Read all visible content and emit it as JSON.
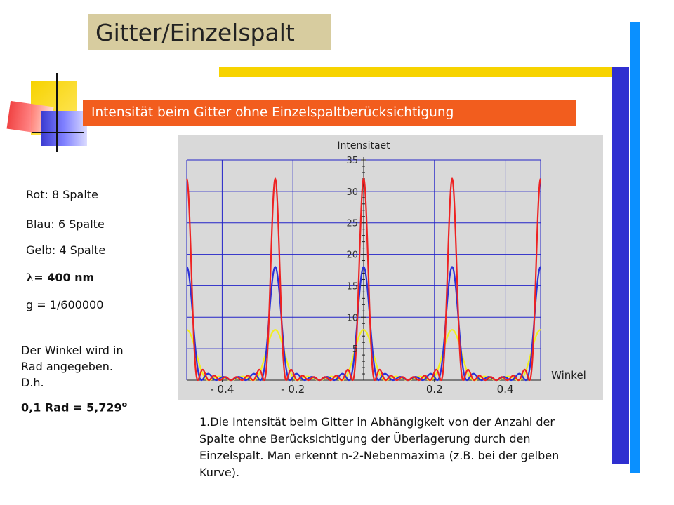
{
  "header": {
    "title": "Gitter/Einzelspalt",
    "subtitle": "Intensität beim Gitter ohne Einzelspaltberücksichtigung"
  },
  "legend": {
    "red": "Rot: 8 Spalte",
    "blue": "Blau: 6 Spalte",
    "yellow": "Gelb: 4 Spalte",
    "lambda_symbol": "λ",
    "lambda_value": "= 400 nm",
    "g": "g = 1/600000"
  },
  "note": {
    "line1": "Der Winkel wird in",
    "line2": "Rad angegeben.",
    "line3": "D.h.",
    "conversion": "0,1 Rad = 5,729",
    "degree_symbol": "o"
  },
  "caption": "1.Die Intensität beim Gitter in Abhängigkeit von der Anzahl der Spalte ohne Berücksichtigung der Überlagerung durch den Einzelspalt. Man erkennt n-2-Nebenmaxima (z.B. bei der gelben Kurve).",
  "colors": {
    "red": "#ee2222",
    "blue": "#2a32d8",
    "yellow": "#f2ee22",
    "plot_bg": "#d9d9d9",
    "grid": "#2323c8"
  },
  "chart_data": {
    "type": "line",
    "ylabel": "Intensitaet",
    "xlabel": "Winkel",
    "xlim": [
      -0.5,
      0.5
    ],
    "ylim": [
      0,
      35
    ],
    "x_ticks": [
      -0.4,
      -0.2,
      0.2,
      0.4
    ],
    "x_tick_labels": [
      "- 0.4",
      "- 0.2",
      "0.2",
      "0.4"
    ],
    "y_ticks": [
      5,
      10,
      15,
      20,
      25,
      30,
      35
    ],
    "y_tick_labels": [
      "5",
      "10",
      "15",
      "20",
      "25",
      "30",
      "35"
    ],
    "grid": true,
    "peak_positions": [
      -0.5,
      -0.24,
      0.0,
      0.24,
      0.5
    ],
    "series": [
      {
        "n": 8,
        "peak": 32,
        "color": "red"
      },
      {
        "n": 6,
        "peak": 18,
        "color": "blue"
      },
      {
        "n": 4,
        "peak": 8,
        "color": "yellow"
      }
    ]
  }
}
